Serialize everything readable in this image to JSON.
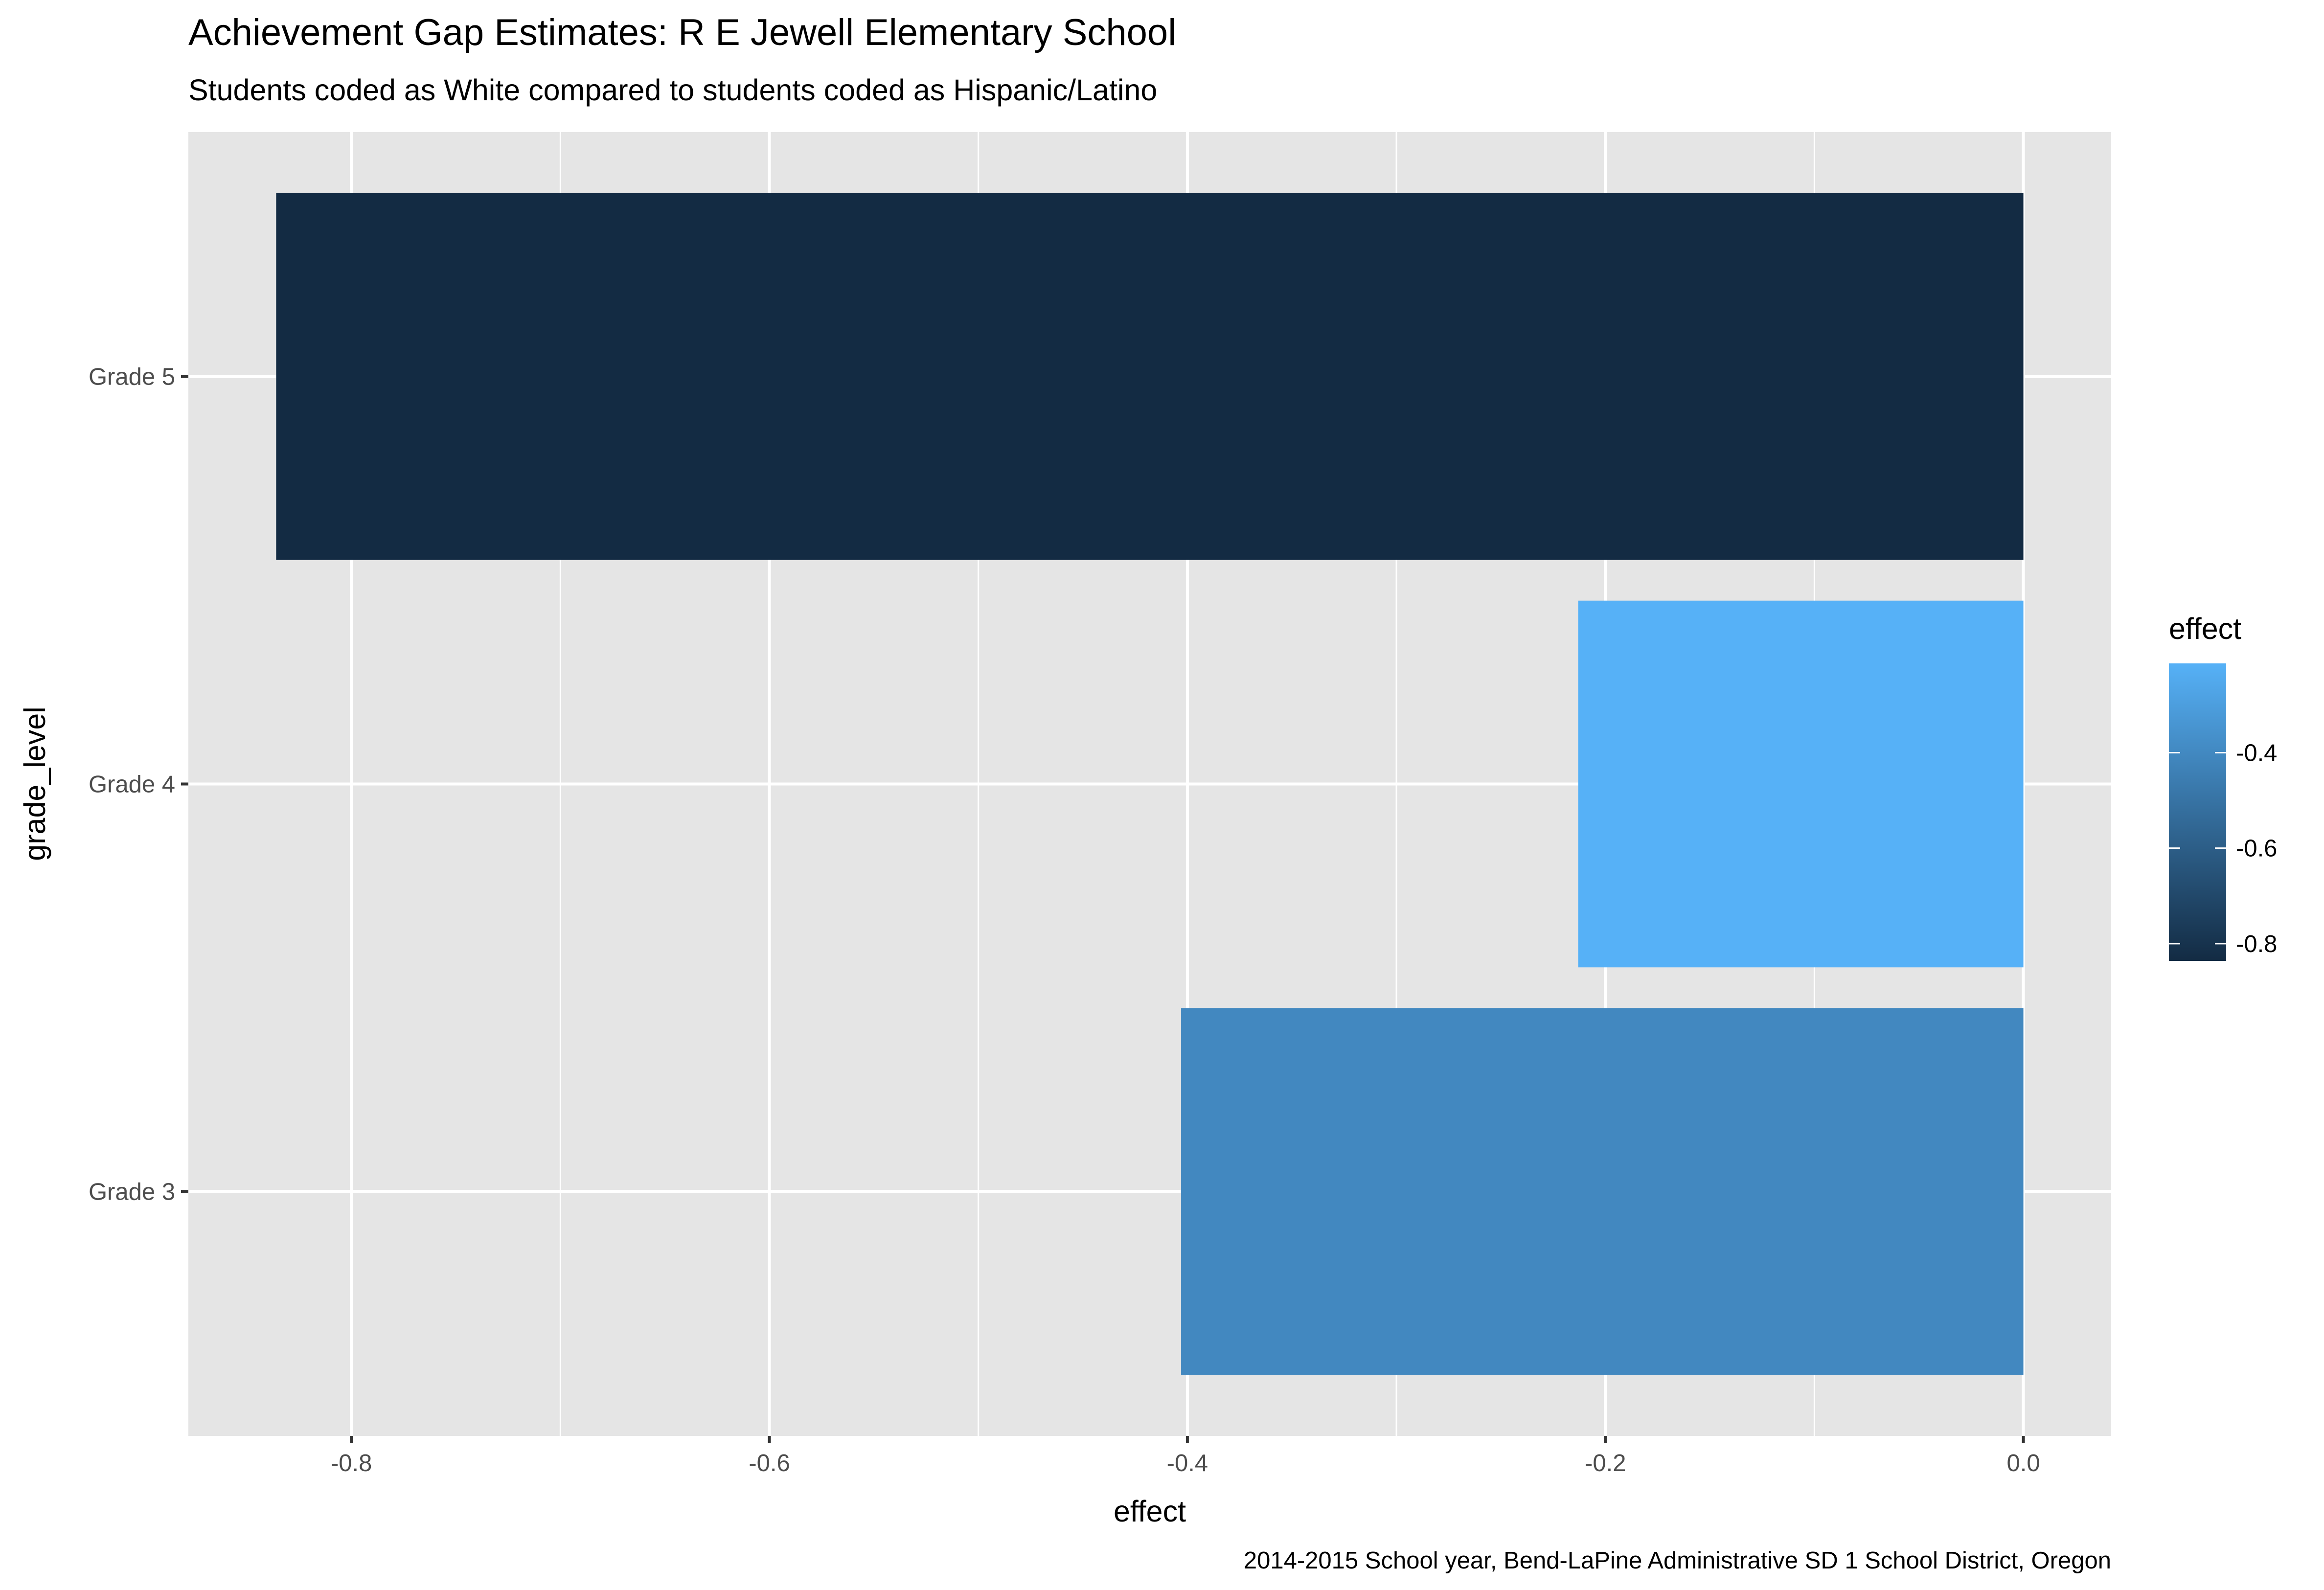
{
  "chart_data": {
    "type": "bar",
    "orientation": "horizontal",
    "title": "Achievement Gap Estimates: R E Jewell Elementary School",
    "subtitle": "Students coded as White compared to students coded as Hispanic/Latino",
    "caption": "2014-2015 School year, Bend-LaPine Administrative SD 1 School District, Oregon",
    "xlabel": "effect",
    "ylabel": "grade_level",
    "categories": [
      "Grade 3",
      "Grade 4",
      "Grade 5"
    ],
    "values": [
      -0.403,
      -0.213,
      -0.836
    ],
    "xlim": [
      -0.878,
      0.042
    ],
    "x_ticks": [
      -0.8,
      -0.6,
      -0.4,
      -0.2,
      0.0
    ],
    "x_tick_labels": [
      "-0.8",
      "-0.6",
      "-0.4",
      "-0.2",
      "0.0"
    ],
    "x_minor_ticks": [
      -0.7,
      -0.5,
      -0.3,
      -0.1
    ],
    "grid": true,
    "legend": {
      "title": "effect",
      "placement": "right",
      "type": "colorbar",
      "range": [
        -0.836,
        -0.213
      ],
      "ticks": [
        -0.4,
        -0.6,
        -0.8
      ],
      "tick_labels": [
        "-0.4",
        "-0.6",
        "-0.8"
      ],
      "color_low": "#132B43",
      "color_high": "#56B1F7"
    },
    "colors": {
      "panel_background": "#E5E5E5",
      "grid": "#FFFFFF",
      "tick": "#333333"
    }
  }
}
